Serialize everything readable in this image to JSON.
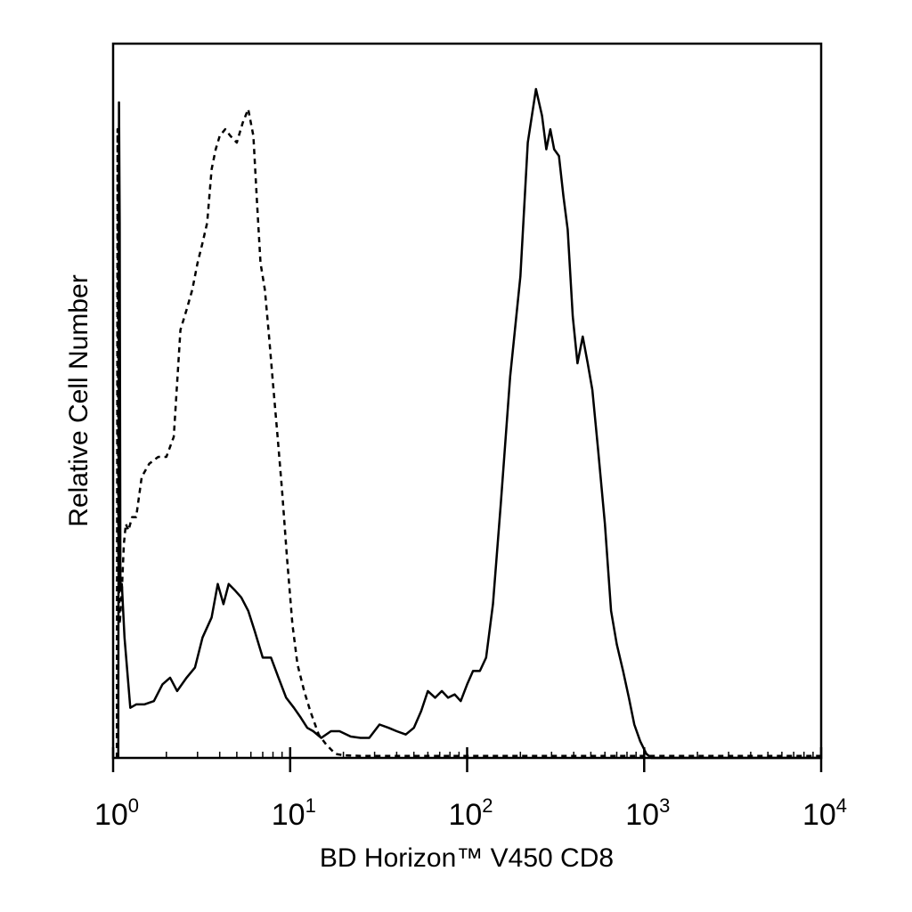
{
  "chart_data": {
    "type": "line",
    "title": "",
    "xlabel": "BD Horizon™ V450 CD8",
    "ylabel": "Relative Cell Number",
    "x_scale": "log",
    "xlim": [
      1,
      10000
    ],
    "ylim": [
      0,
      1.0
    ],
    "y_ticks": false,
    "grid": false,
    "legend": "none",
    "x_ticks": [
      {
        "base": "10",
        "exp": "0",
        "value": 1
      },
      {
        "base": "10",
        "exp": "1",
        "value": 10
      },
      {
        "base": "10",
        "exp": "2",
        "value": 100
      },
      {
        "base": "10",
        "exp": "3",
        "value": 1000
      },
      {
        "base": "10",
        "exp": "4",
        "value": 10000
      }
    ],
    "series": [
      {
        "style": "solid",
        "color": "#000000",
        "x": [
          1.07,
          1.08,
          1.09,
          1.1,
          1.12,
          1.16,
          1.25,
          1.35,
          1.5,
          1.7,
          1.9,
          2.1,
          2.3,
          2.6,
          2.9,
          3.2,
          3.6,
          3.9,
          4.2,
          4.5,
          4.9,
          5.3,
          5.8,
          6.3,
          7.0,
          7.8,
          8.6,
          9.5,
          10.5,
          11.5,
          12.5,
          13.5,
          15,
          17,
          19,
          22,
          25,
          28,
          32,
          36,
          40,
          45,
          50,
          55,
          60,
          66,
          72,
          78,
          85,
          92,
          100,
          108,
          118,
          128,
          140,
          155,
          175,
          200,
          220,
          245,
          265,
          280,
          295,
          310,
          330,
          350,
          370,
          395,
          420,
          450,
          480,
          510,
          550,
          600,
          650,
          700,
          760,
          820,
          880,
          950,
          1030,
          1100,
          1200,
          1300,
          1500,
          2000,
          3000,
          5000,
          8000,
          10000
        ],
        "y": [
          0.0,
          0.98,
          0.8,
          0.25,
          0.26,
          0.18,
          0.075,
          0.08,
          0.08,
          0.085,
          0.11,
          0.12,
          0.1,
          0.12,
          0.135,
          0.18,
          0.21,
          0.26,
          0.23,
          0.26,
          0.25,
          0.24,
          0.22,
          0.19,
          0.15,
          0.15,
          0.12,
          0.09,
          0.075,
          0.06,
          0.045,
          0.04,
          0.03,
          0.04,
          0.04,
          0.032,
          0.03,
          0.03,
          0.05,
          0.045,
          0.04,
          0.035,
          0.045,
          0.07,
          0.1,
          0.09,
          0.1,
          0.09,
          0.095,
          0.085,
          0.11,
          0.13,
          0.13,
          0.15,
          0.23,
          0.38,
          0.57,
          0.72,
          0.92,
          1.0,
          0.96,
          0.91,
          0.94,
          0.91,
          0.9,
          0.84,
          0.79,
          0.66,
          0.59,
          0.63,
          0.59,
          0.55,
          0.46,
          0.35,
          0.22,
          0.17,
          0.13,
          0.09,
          0.05,
          0.025,
          0.006,
          0.0,
          0.0,
          0.0,
          0.0,
          0.0,
          0.0,
          0.0,
          0.0,
          0.0
        ]
      },
      {
        "style": "dashed",
        "color": "#000000",
        "x": [
          1.05,
          1.06,
          1.07,
          1.09,
          1.12,
          1.15,
          1.18,
          1.22,
          1.28,
          1.35,
          1.45,
          1.6,
          1.8,
          2.0,
          2.2,
          2.4,
          2.6,
          2.8,
          3.0,
          3.2,
          3.4,
          3.6,
          3.8,
          4.0,
          4.3,
          4.6,
          5.0,
          5.4,
          5.8,
          6.2,
          6.5,
          6.8,
          7.2,
          7.6,
          8.0,
          8.5,
          9.0,
          9.6,
          10.3,
          11.0,
          12.0,
          13.0,
          14.5,
          16,
          18,
          20,
          25,
          30,
          40,
          60,
          100,
          200,
          500,
          1000,
          2000,
          5000,
          10000
        ],
        "y": [
          0.0,
          0.94,
          0.3,
          0.2,
          0.25,
          0.32,
          0.35,
          0.34,
          0.36,
          0.36,
          0.42,
          0.44,
          0.45,
          0.45,
          0.48,
          0.64,
          0.67,
          0.7,
          0.74,
          0.77,
          0.8,
          0.88,
          0.91,
          0.93,
          0.94,
          0.93,
          0.92,
          0.95,
          0.97,
          0.93,
          0.83,
          0.74,
          0.7,
          0.63,
          0.56,
          0.48,
          0.4,
          0.3,
          0.2,
          0.14,
          0.1,
          0.07,
          0.035,
          0.02,
          0.006,
          0.004,
          0.003,
          0.003,
          0.003,
          0.003,
          0.003,
          0.003,
          0.003,
          0.003,
          0.003,
          0.003,
          0.003
        ]
      }
    ]
  }
}
